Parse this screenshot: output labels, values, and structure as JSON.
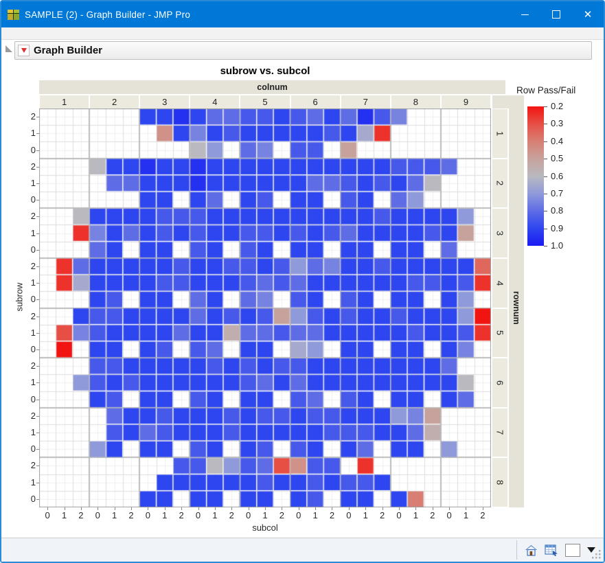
{
  "window": {
    "title": "SAMPLE (2) - Graph Builder - JMP Pro",
    "controls": {
      "minimize": "minimize",
      "maximize": "maximize",
      "close": "close"
    }
  },
  "outline": {
    "label": "Graph Builder"
  },
  "chart_data": {
    "type": "heatmap",
    "title": "subrow vs. subcol",
    "x_group_label": "colnum",
    "x_groups": [
      "1",
      "2",
      "3",
      "4",
      "5",
      "6",
      "7",
      "8",
      "9"
    ],
    "y_group_label": "rownum",
    "y_groups": [
      "1",
      "2",
      "3",
      "4",
      "5",
      "6",
      "7",
      "8"
    ],
    "xlabel": "subcol",
    "x_sub": [
      "0",
      "1",
      "2"
    ],
    "ylabel": "subrow",
    "y_sub": [
      "2",
      "1",
      "0"
    ],
    "legend": {
      "title": "Row Pass/Fail",
      "ticks": [
        "0.2",
        "0.3",
        "0.4",
        "0.5",
        "0.6",
        "0.7",
        "0.8",
        "0.9",
        "1.0"
      ],
      "min": 0.2,
      "max": 1.0,
      "orientation": "vertical",
      "top_value": 0.2,
      "bottom_value": 1.0
    },
    "color_stops": [
      {
        "v": 0.2,
        "c": "#f21411"
      },
      {
        "v": 0.3,
        "c": "#e74f45"
      },
      {
        "v": 0.4,
        "c": "#d77f74"
      },
      {
        "v": 0.5,
        "c": "#c7a29c"
      },
      {
        "v": 0.6,
        "c": "#b9b9bf"
      },
      {
        "v": 0.7,
        "c": "#8f9ada"
      },
      {
        "v": 0.8,
        "c": "#5e6ce6"
      },
      {
        "v": 0.9,
        "c": "#2e46f0"
      },
      {
        "v": 1.0,
        "c": "#1b1bf2"
      }
    ],
    "grid": {
      "cols": 27,
      "rows": 24,
      "col_group_size": 3,
      "row_group_size": 3
    },
    "values": [
      [
        null,
        null,
        null,
        null,
        null,
        null,
        0.9,
        0.9,
        0.95,
        0.9,
        0.8,
        0.8,
        0.85,
        0.85,
        0.9,
        0.85,
        0.8,
        0.9,
        0.8,
        0.95,
        0.85,
        0.75,
        null,
        null,
        null,
        null,
        null
      ],
      [
        null,
        null,
        null,
        null,
        null,
        null,
        null,
        0.45,
        0.9,
        0.75,
        0.9,
        0.85,
        0.9,
        0.9,
        0.9,
        0.9,
        0.9,
        0.85,
        0.9,
        0.65,
        0.25,
        null,
        null,
        null,
        null,
        null,
        null
      ],
      [
        null,
        null,
        null,
        null,
        null,
        null,
        null,
        null,
        null,
        0.6,
        0.7,
        null,
        0.8,
        0.75,
        null,
        0.85,
        0.85,
        null,
        0.5,
        null,
        null,
        null,
        null,
        null,
        null,
        null,
        null
      ],
      [
        null,
        null,
        null,
        0.6,
        0.9,
        0.9,
        0.95,
        0.9,
        0.9,
        0.95,
        0.9,
        0.9,
        0.9,
        0.9,
        0.9,
        0.9,
        0.9,
        0.9,
        0.9,
        0.9,
        0.9,
        0.85,
        0.85,
        0.85,
        0.8,
        null,
        null
      ],
      [
        null,
        null,
        null,
        null,
        0.8,
        0.8,
        0.9,
        0.9,
        0.9,
        0.95,
        0.9,
        0.9,
        0.9,
        0.9,
        0.9,
        0.9,
        0.8,
        0.8,
        0.85,
        0.9,
        0.85,
        0.9,
        0.8,
        0.6,
        null,
        null,
        null
      ],
      [
        null,
        null,
        null,
        null,
        null,
        null,
        0.9,
        0.9,
        null,
        0.9,
        0.8,
        null,
        0.9,
        0.85,
        null,
        0.9,
        0.9,
        null,
        0.85,
        0.9,
        null,
        0.8,
        0.7,
        null,
        null,
        null,
        null
      ],
      [
        null,
        null,
        0.6,
        0.9,
        0.9,
        0.9,
        0.9,
        0.85,
        0.85,
        0.85,
        0.9,
        0.9,
        0.9,
        0.9,
        0.9,
        0.9,
        0.9,
        0.9,
        0.9,
        0.9,
        0.85,
        0.9,
        0.9,
        0.9,
        0.9,
        0.7,
        null
      ],
      [
        null,
        null,
        0.25,
        0.75,
        0.9,
        0.8,
        0.9,
        0.85,
        0.9,
        0.85,
        0.9,
        0.9,
        0.85,
        0.85,
        0.9,
        0.85,
        0.9,
        0.85,
        0.8,
        0.9,
        0.9,
        0.9,
        0.9,
        0.85,
        0.9,
        0.5,
        null
      ],
      [
        null,
        null,
        null,
        0.8,
        0.9,
        null,
        0.9,
        0.9,
        null,
        0.85,
        0.9,
        null,
        0.85,
        0.9,
        null,
        0.9,
        0.9,
        null,
        0.9,
        0.9,
        null,
        0.9,
        0.9,
        null,
        0.8,
        null,
        null
      ],
      [
        null,
        0.25,
        0.8,
        0.9,
        0.9,
        0.9,
        0.9,
        0.9,
        0.85,
        0.9,
        0.9,
        0.85,
        0.85,
        0.9,
        0.85,
        0.7,
        0.8,
        0.75,
        0.9,
        0.9,
        0.85,
        0.9,
        0.9,
        0.9,
        0.9,
        0.9,
        0.35
      ],
      [
        null,
        0.25,
        0.65,
        0.9,
        0.9,
        0.9,
        0.9,
        0.85,
        0.85,
        0.9,
        0.9,
        0.9,
        0.85,
        0.8,
        0.85,
        0.8,
        0.9,
        0.9,
        0.9,
        0.9,
        0.9,
        0.9,
        0.85,
        0.85,
        0.9,
        0.85,
        0.25
      ],
      [
        null,
        null,
        null,
        0.9,
        0.85,
        null,
        0.9,
        0.9,
        null,
        0.8,
        0.9,
        null,
        0.8,
        0.75,
        null,
        0.85,
        0.9,
        null,
        0.85,
        0.9,
        null,
        0.9,
        0.9,
        null,
        0.9,
        0.7,
        null
      ],
      [
        null,
        null,
        0.9,
        0.85,
        0.85,
        0.9,
        0.9,
        0.9,
        0.9,
        0.8,
        0.9,
        0.85,
        0.9,
        0.85,
        0.5,
        0.7,
        0.85,
        0.9,
        0.85,
        0.9,
        0.9,
        0.85,
        0.9,
        0.9,
        0.9,
        0.7,
        0.2
      ],
      [
        null,
        0.3,
        0.75,
        0.85,
        0.9,
        0.9,
        0.9,
        0.9,
        0.8,
        0.9,
        0.9,
        0.55,
        0.8,
        0.8,
        0.85,
        0.8,
        0.8,
        0.9,
        0.9,
        0.9,
        0.9,
        0.9,
        0.85,
        0.9,
        0.9,
        0.85,
        0.25
      ],
      [
        null,
        0.2,
        null,
        0.9,
        0.9,
        null,
        0.9,
        0.85,
        null,
        0.85,
        0.8,
        null,
        0.9,
        0.9,
        null,
        0.65,
        0.7,
        null,
        0.9,
        0.9,
        null,
        0.9,
        0.9,
        null,
        0.9,
        0.75,
        null
      ],
      [
        null,
        null,
        null,
        0.85,
        0.85,
        0.9,
        0.9,
        0.9,
        0.9,
        0.9,
        0.85,
        0.9,
        0.85,
        0.9,
        0.85,
        0.85,
        0.9,
        0.9,
        0.9,
        0.9,
        0.9,
        0.9,
        0.9,
        0.9,
        0.8,
        null,
        null
      ],
      [
        null,
        null,
        0.7,
        0.85,
        0.9,
        0.85,
        0.9,
        0.9,
        0.9,
        0.9,
        0.9,
        0.9,
        0.85,
        0.8,
        0.9,
        0.8,
        0.9,
        0.9,
        0.9,
        0.9,
        0.9,
        0.9,
        0.9,
        0.9,
        0.9,
        0.6,
        null
      ],
      [
        null,
        null,
        null,
        0.9,
        0.85,
        null,
        0.9,
        0.9,
        null,
        0.85,
        0.9,
        null,
        0.9,
        0.9,
        null,
        0.85,
        0.8,
        null,
        0.85,
        0.9,
        null,
        0.9,
        0.9,
        null,
        0.9,
        0.8,
        null
      ],
      [
        null,
        null,
        null,
        null,
        0.8,
        0.9,
        0.9,
        0.85,
        0.9,
        0.9,
        0.9,
        0.85,
        0.9,
        0.85,
        0.85,
        0.9,
        0.85,
        0.85,
        0.9,
        0.9,
        0.9,
        0.7,
        0.75,
        0.5,
        null,
        null,
        null
      ],
      [
        null,
        null,
        null,
        null,
        0.85,
        0.9,
        0.8,
        0.85,
        0.9,
        0.9,
        0.9,
        0.85,
        0.9,
        0.9,
        0.9,
        0.9,
        0.9,
        0.85,
        0.85,
        0.85,
        0.9,
        0.9,
        0.8,
        0.55,
        null,
        null,
        null
      ],
      [
        null,
        null,
        null,
        0.7,
        0.9,
        null,
        0.9,
        0.9,
        null,
        0.85,
        0.9,
        null,
        0.9,
        0.85,
        null,
        0.85,
        0.9,
        null,
        0.9,
        0.8,
        null,
        0.9,
        0.9,
        null,
        0.7,
        null,
        null
      ],
      [
        null,
        null,
        null,
        null,
        null,
        null,
        null,
        null,
        0.85,
        0.85,
        0.6,
        0.7,
        0.85,
        0.8,
        0.3,
        0.45,
        0.85,
        0.85,
        null,
        0.25,
        null,
        null,
        null,
        null,
        null,
        null,
        null
      ],
      [
        null,
        null,
        null,
        null,
        null,
        null,
        null,
        0.9,
        0.9,
        0.9,
        0.9,
        0.9,
        0.9,
        0.85,
        0.9,
        0.9,
        0.85,
        0.9,
        0.85,
        0.85,
        0.9,
        null,
        null,
        null,
        null,
        null,
        null
      ],
      [
        null,
        null,
        null,
        null,
        null,
        null,
        0.9,
        0.9,
        null,
        0.9,
        0.9,
        null,
        0.9,
        0.9,
        null,
        0.9,
        0.85,
        null,
        0.9,
        0.9,
        null,
        0.9,
        0.4,
        null,
        null,
        null,
        null
      ]
    ]
  },
  "footer": {
    "icons": [
      "home-icon",
      "data-table-icon",
      "color-swatch",
      "dropdown-arrow",
      "resize-grip"
    ]
  }
}
